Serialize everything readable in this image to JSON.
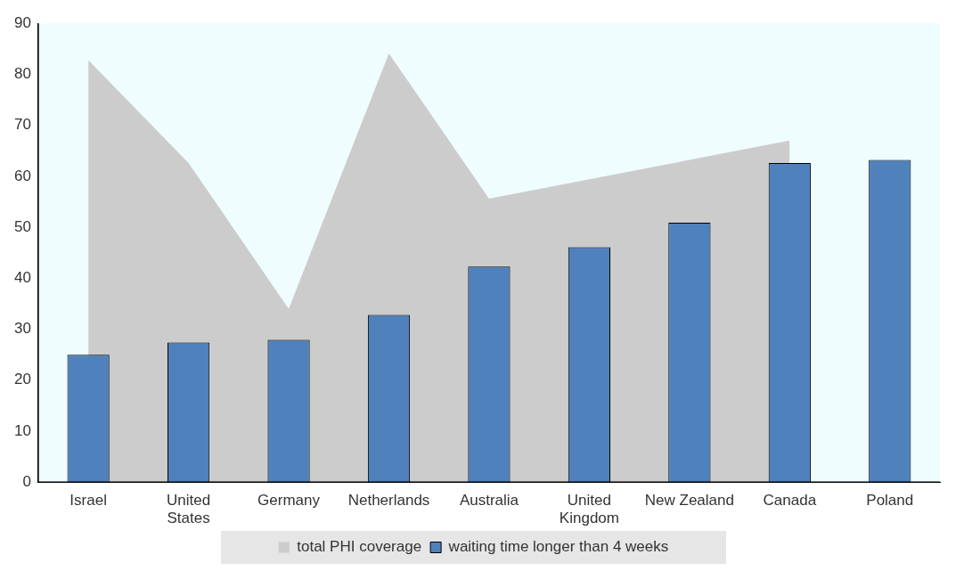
{
  "chart_data": {
    "type": "bar",
    "categories": [
      "Israel",
      "United States",
      "Germany",
      "Netherlands",
      "Australia",
      "United Kingdom",
      "New Zealand",
      "Canada",
      "Poland"
    ],
    "series": [
      {
        "name": "total PHI coverage",
        "type": "area",
        "color": "#cccccc",
        "values": [
          82.8,
          62.6,
          34,
          84.1,
          55.6,
          null,
          null,
          67,
          null
        ]
      },
      {
        "name": "waiting time longer than 4 weeks",
        "color": "#4f81bd",
        "values": [
          25,
          27.4,
          27.9,
          32.8,
          42.3,
          46.1,
          50.9,
          62.6,
          63.2
        ]
      }
    ],
    "ylim": [
      0,
      90
    ],
    "yticks": [
      0,
      10,
      20,
      30,
      40,
      50,
      60,
      70,
      80,
      90
    ],
    "grid": false,
    "legend": "bottom"
  }
}
